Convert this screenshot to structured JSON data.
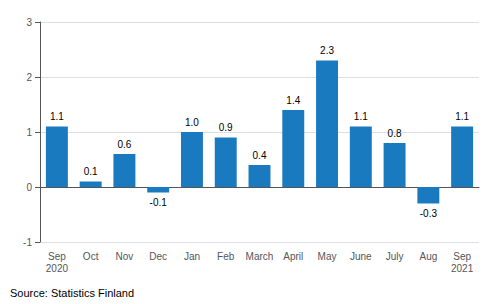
{
  "chart_data": {
    "type": "bar",
    "categories": [
      "Sep\n2020",
      "Oct",
      "Nov",
      "Dec",
      "Jan",
      "Feb",
      "March",
      "April",
      "May",
      "June",
      "July",
      "Aug",
      "Sep\n2021"
    ],
    "values": [
      1.1,
      0.1,
      0.6,
      -0.1,
      1.0,
      0.9,
      0.4,
      1.4,
      2.3,
      1.1,
      0.8,
      -0.3,
      1.1
    ],
    "value_labels": [
      "1.1",
      "0.1",
      "0.6",
      "-0.1",
      "1.0",
      "0.9",
      "0.4",
      "1.4",
      "2.3",
      "1.1",
      "0.8",
      "-0.3",
      "1.1"
    ],
    "color": "#1a7abf",
    "ylim": [
      -1,
      3
    ],
    "yticks": [
      -1,
      0,
      1,
      2,
      3
    ],
    "grid": true,
    "data_labels": true,
    "annotations": [
      "Source: Statistics Finland"
    ]
  }
}
